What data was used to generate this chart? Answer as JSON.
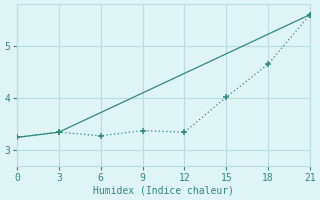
{
  "xlabel": "Humidex (Indice chaleur)",
  "line1_x": [
    0,
    3,
    21
  ],
  "line1_y": [
    3.25,
    3.35,
    5.6
  ],
  "line2_x": [
    0,
    3,
    6,
    9,
    12,
    15,
    18,
    21
  ],
  "line2_y": [
    3.25,
    3.35,
    3.28,
    3.38,
    3.35,
    4.02,
    4.65,
    5.6
  ],
  "line_color": "#2e8b7a",
  "bg_color": "#dff4f4",
  "grid_color": "#b8dede",
  "xlim": [
    0,
    21
  ],
  "ylim": [
    2.7,
    5.8
  ],
  "yticks": [
    3,
    4,
    5
  ],
  "xticks": [
    0,
    3,
    6,
    9,
    12,
    15,
    18,
    21
  ],
  "marker": "+",
  "linewidth": 0.9,
  "markersize": 4,
  "fontsize": 7
}
